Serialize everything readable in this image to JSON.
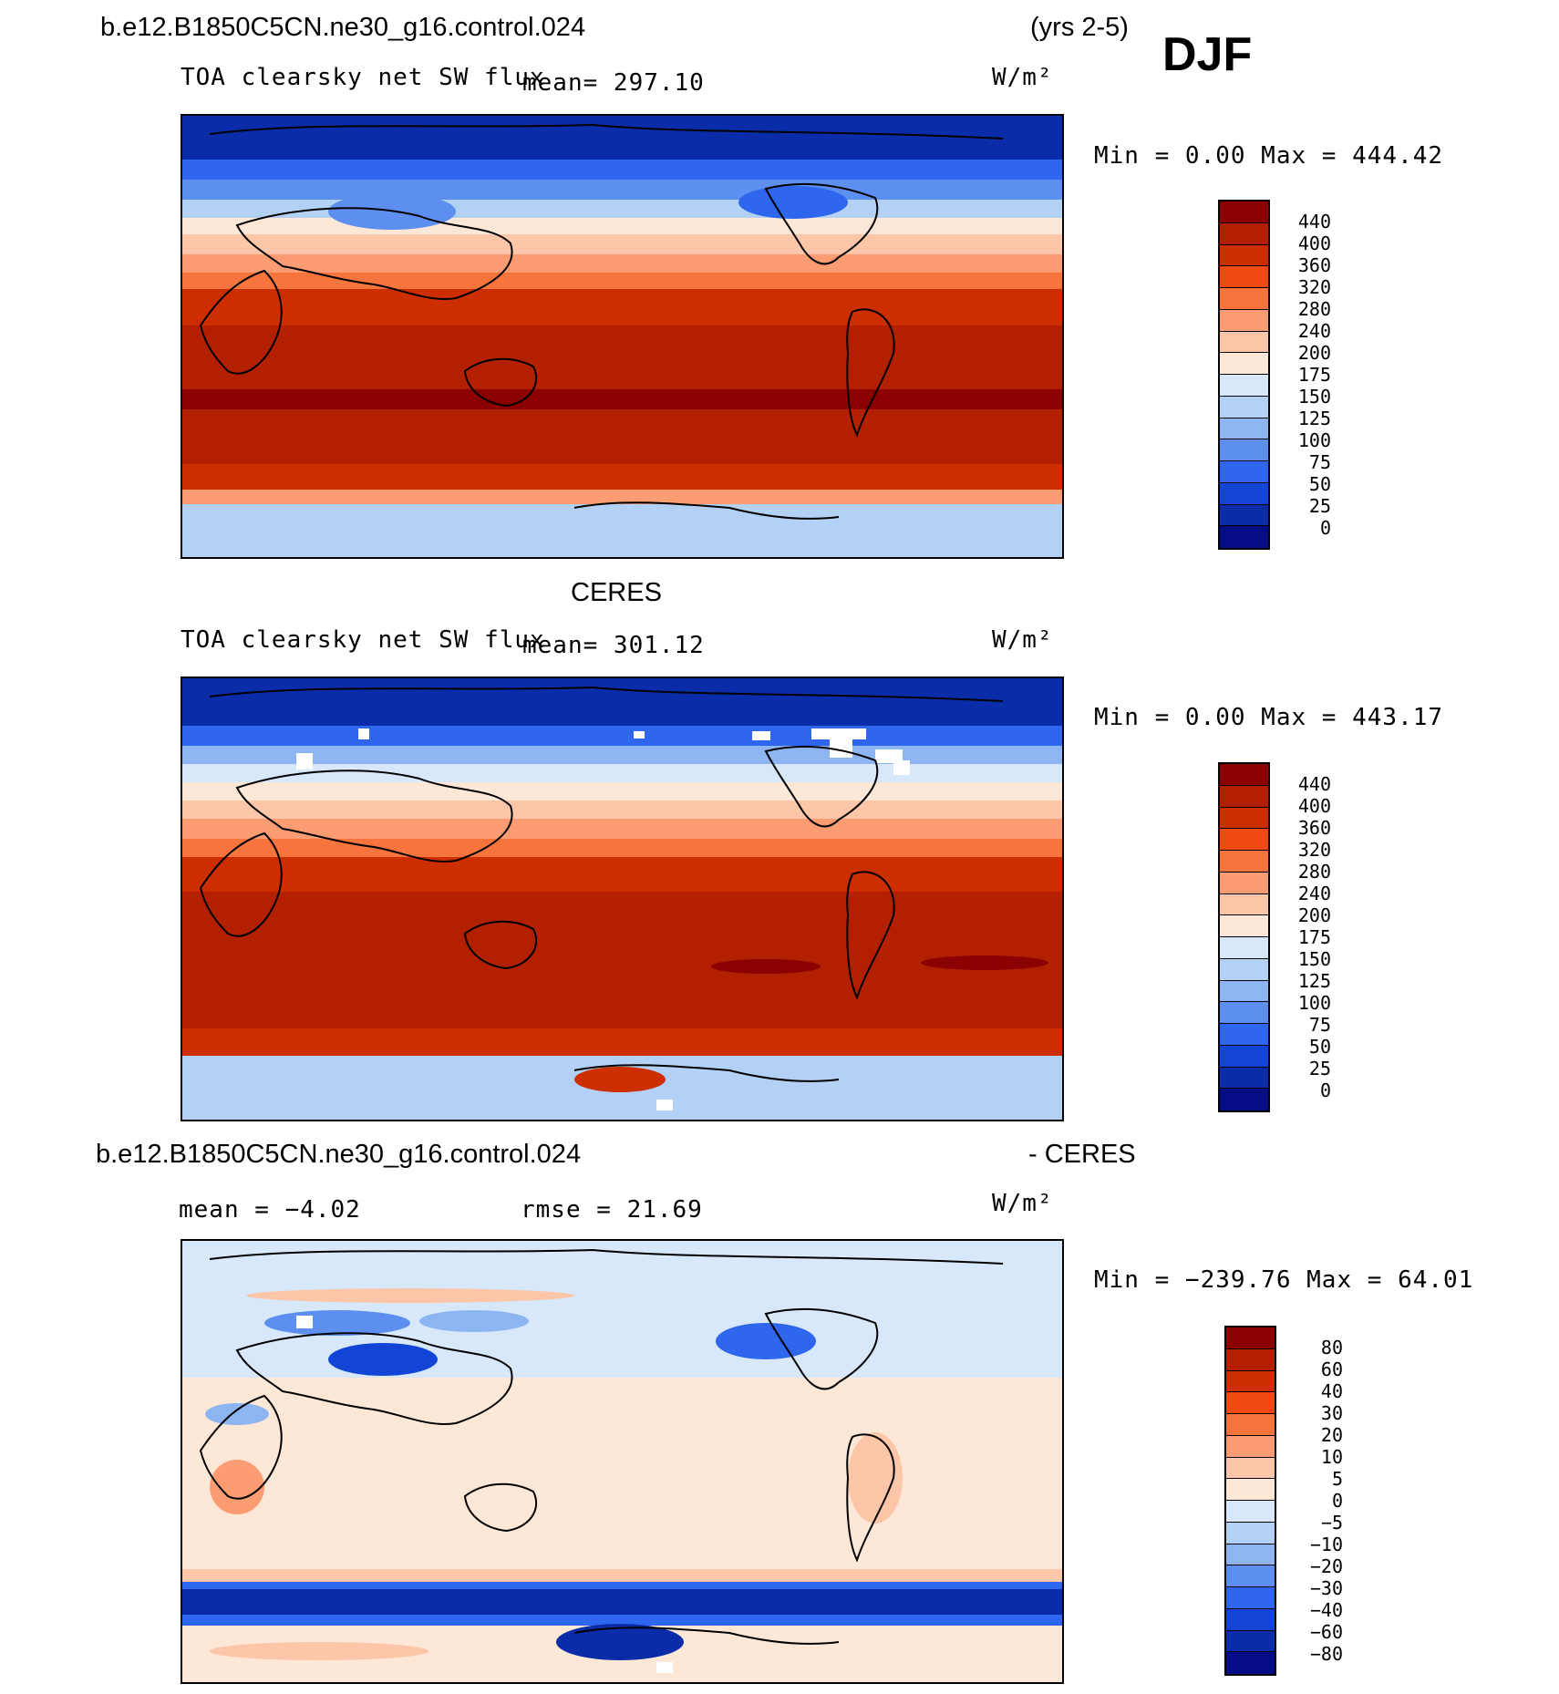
{
  "header": {
    "case_name": "b.e12.B1850C5CN.ne30_g16.control.024",
    "years": "(yrs 2-5)",
    "season": "DJF"
  },
  "panels": [
    {
      "id": "model",
      "heading": "",
      "variable": "TOA clearsky net SW flux",
      "stat_text": "mean=  297.10",
      "units": "W/m²",
      "minmax_text": "Min =     0.00 Max =  444.42",
      "colorbar_labels": [
        "440",
        "400",
        "360",
        "320",
        "280",
        "240",
        "200",
        "175",
        "150",
        "125",
        "100",
        "75",
        "50",
        "25",
        "0"
      ]
    },
    {
      "id": "obs",
      "heading": "CERES",
      "variable": "TOA clearsky net SW flux",
      "stat_text": "mean=  301.12",
      "units": "W/m²",
      "minmax_text": "Min =     0.00 Max =  443.17",
      "colorbar_labels": [
        "440",
        "400",
        "360",
        "320",
        "280",
        "240",
        "200",
        "175",
        "150",
        "125",
        "100",
        "75",
        "50",
        "25",
        "0"
      ]
    },
    {
      "id": "diff",
      "heading_left": "b.e12.B1850C5CN.ne30_g16.control.024",
      "heading_right": "- CERES",
      "stat_text_mean": "mean =   −4.02",
      "stat_text_rmse": "rmse =   21.69",
      "units": "W/m²",
      "minmax_text": "Min = −239.76 Max =   64.01",
      "colorbar_labels": [
        "80",
        "60",
        "40",
        "30",
        "20",
        "10",
        "5",
        "0",
        "−5",
        "−10",
        "−20",
        "−30",
        "−40",
        "−60",
        "−80"
      ]
    }
  ],
  "colors": {
    "flux_scale": [
      "#8b0000",
      "#b22000",
      "#cc2e00",
      "#f04a10",
      "#f7753d",
      "#fb9c72",
      "#fdc6a8",
      "#fde8d8",
      "#d6e8fa",
      "#b3d1f5",
      "#8db5f2",
      "#5d8ff0",
      "#2f66ee",
      "#1244d6",
      "#0a2ca8",
      "#040d85"
    ],
    "diff_scale": [
      "#8b0000",
      "#b22000",
      "#cc2e00",
      "#f04a10",
      "#f7753d",
      "#fb9c72",
      "#fdc6a8",
      "#fde8d8",
      "#d6e8fa",
      "#b3d1f5",
      "#8db5f2",
      "#5d8ff0",
      "#2f66ee",
      "#1244d6",
      "#0a2ca8",
      "#040d85"
    ]
  }
}
